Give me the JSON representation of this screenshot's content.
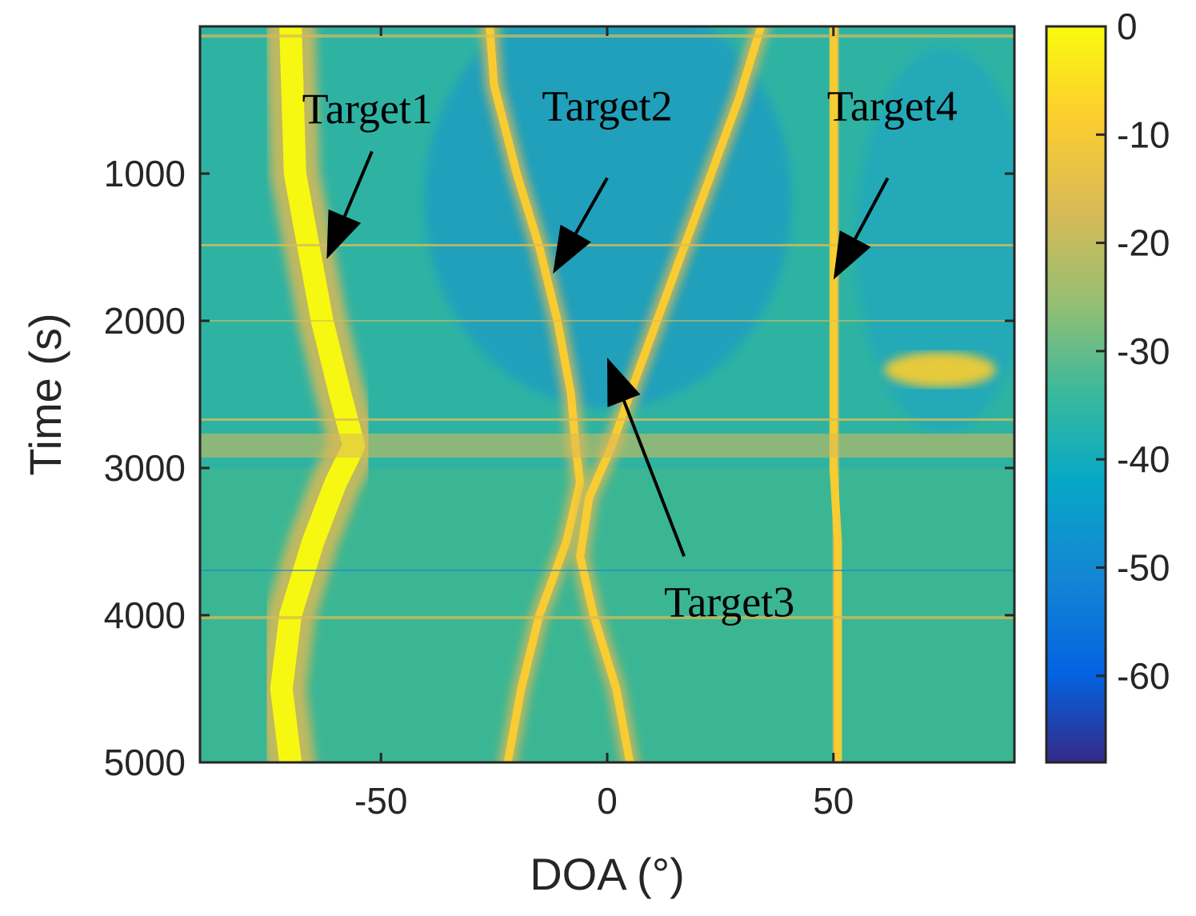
{
  "chart_data": {
    "type": "heatmap",
    "title": "",
    "xlabel": "DOA (°)",
    "ylabel": "Time (s)",
    "xlim": [
      -90,
      90
    ],
    "ylim": [
      0,
      5000
    ],
    "y_reversed": true,
    "x_ticks": [
      -50,
      0,
      50
    ],
    "x_tick_labels": [
      "-50",
      "0",
      "50"
    ],
    "y_ticks": [
      1000,
      2000,
      3000,
      4000,
      5000
    ],
    "y_tick_labels": [
      "1000",
      "2000",
      "3000",
      "4000",
      "5000"
    ],
    "colorbar": {
      "colormap": "parula",
      "range": [
        -68,
        0
      ],
      "ticks": [
        0,
        -10,
        -20,
        -30,
        -40,
        -50,
        -60
      ],
      "tick_labels": [
        "0",
        "-10",
        "-20",
        "-30",
        "-40",
        "-50",
        "-60"
      ]
    },
    "tracks": [
      {
        "name": "Target1",
        "points": [
          [
            0,
            -70
          ],
          [
            1000,
            -69
          ],
          [
            1500,
            -66
          ],
          [
            2000,
            -63
          ],
          [
            2500,
            -59
          ],
          [
            2850,
            -56
          ],
          [
            3100,
            -60
          ],
          [
            3500,
            -65
          ],
          [
            4000,
            -70
          ],
          [
            4500,
            -72
          ],
          [
            5000,
            -70
          ]
        ]
      },
      {
        "name": "Target2",
        "points": [
          [
            0,
            -26
          ],
          [
            400,
            -25
          ],
          [
            1000,
            -20
          ],
          [
            1500,
            -15
          ],
          [
            2000,
            -11
          ],
          [
            2500,
            -8
          ],
          [
            2850,
            -7
          ],
          [
            3100,
            -6
          ],
          [
            3500,
            -9
          ],
          [
            4000,
            -15
          ],
          [
            4500,
            -19
          ],
          [
            5000,
            -22
          ]
        ]
      },
      {
        "name": "Target3",
        "points": [
          [
            0,
            34
          ],
          [
            500,
            29
          ],
          [
            1000,
            23
          ],
          [
            1500,
            17
          ],
          [
            2000,
            11
          ],
          [
            2500,
            5
          ],
          [
            2850,
            1
          ],
          [
            3200,
            -4
          ],
          [
            3600,
            -6
          ],
          [
            4000,
            -3
          ],
          [
            4500,
            2
          ],
          [
            5000,
            5
          ]
        ]
      },
      {
        "name": "Target4",
        "points": [
          [
            0,
            50
          ],
          [
            1000,
            50
          ],
          [
            1500,
            50
          ],
          [
            2000,
            50
          ],
          [
            2500,
            50
          ],
          [
            3000,
            50
          ],
          [
            3500,
            51
          ],
          [
            4000,
            51
          ],
          [
            4500,
            51
          ],
          [
            5000,
            51
          ]
        ]
      }
    ],
    "annotations": [
      {
        "label": "Target1",
        "text_at": [
          -53,
          560
        ],
        "arrow_from": [
          -52,
          850
        ],
        "arrow_to": [
          -62,
          1580
        ]
      },
      {
        "label": "Target2",
        "text_at": [
          0,
          540
        ],
        "arrow_from": [
          0,
          1030
        ],
        "arrow_to": [
          -12,
          1680
        ]
      },
      {
        "label": "Target4",
        "text_at": [
          63,
          540
        ],
        "arrow_from": [
          62,
          1030
        ],
        "arrow_to": [
          50,
          1720
        ]
      },
      {
        "label": "Target3",
        "text_at": [
          27,
          3910
        ],
        "arrow_from": [
          17,
          3600
        ],
        "arrow_to": [
          0,
          2250
        ]
      }
    ]
  }
}
